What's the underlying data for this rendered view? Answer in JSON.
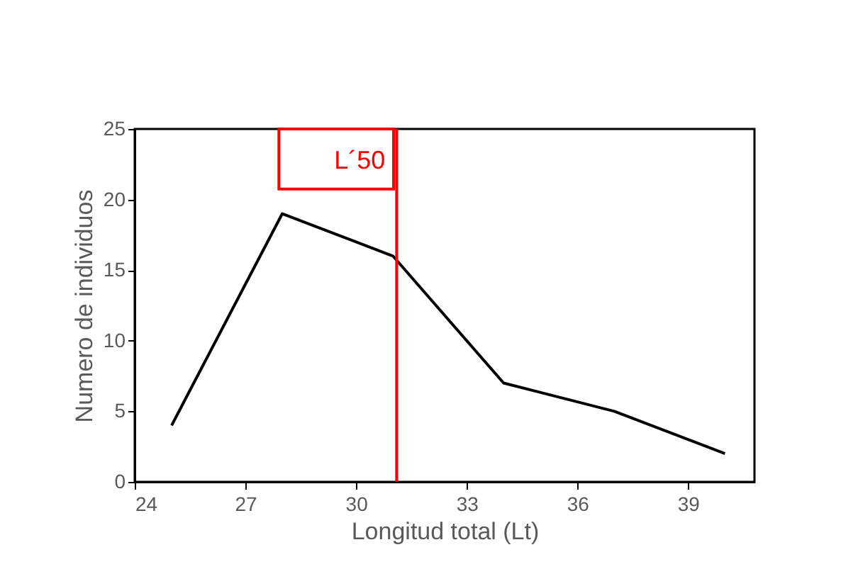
{
  "chart_data": {
    "type": "line",
    "xlabel": "Longitud total (Lt)",
    "ylabel": "Numero de individuos",
    "x": [
      25,
      28,
      31,
      34,
      37,
      40
    ],
    "series": [
      {
        "color": "#000000",
        "values": [
          4,
          19,
          16,
          7,
          5,
          2
        ]
      }
    ],
    "xlim": [
      24,
      40.8
    ],
    "xticks": [
      24,
      27,
      30,
      33,
      36,
      39
    ],
    "ylim": [
      0,
      25
    ],
    "yticks": [
      0,
      5,
      10,
      15,
      20,
      25
    ],
    "grid": false,
    "legend": false,
    "marker": "none",
    "line_style": "solid",
    "ref_lines": [
      {
        "axis": "x",
        "value": 31.1,
        "label": "L´50",
        "color": "#ff0000"
      }
    ]
  }
}
